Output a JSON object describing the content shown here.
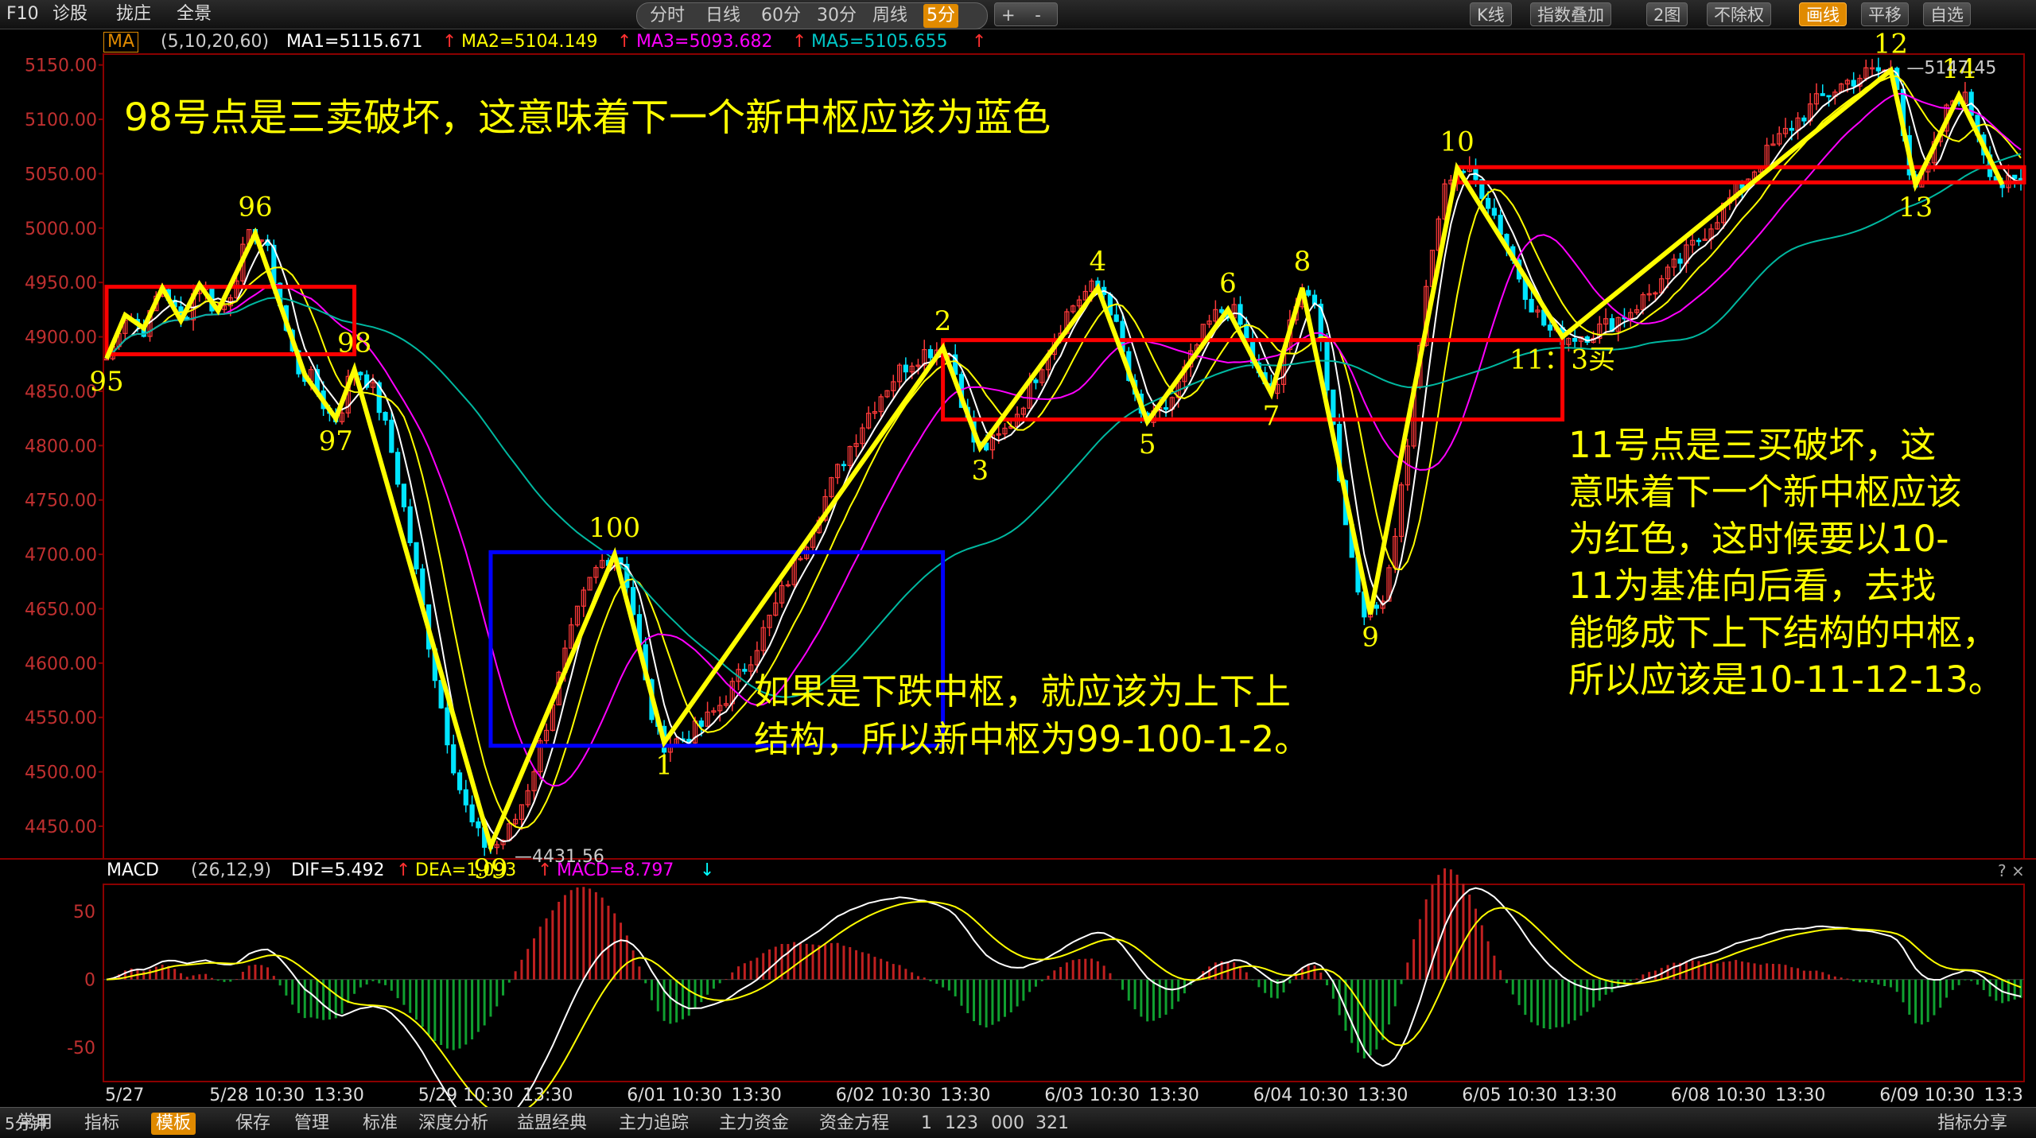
{
  "toolbar": {
    "left": [
      "F10",
      "诊股",
      "拢庄",
      "全景"
    ],
    "periods": [
      "分时",
      "日线",
      "60分",
      "30分",
      "周线",
      "5分"
    ],
    "active_period": "5分",
    "zoom": [
      "+",
      "-"
    ],
    "right": [
      "K线",
      "指数叠加",
      "2图",
      "不除权",
      "画线",
      "平移",
      "自选"
    ]
  },
  "ma_bar": {
    "name": "MA",
    "params": "(5,10,20,60)",
    "ma1": "MA1=5115.671",
    "ma2": "MA2=5104.149",
    "ma3": "MA3=5093.682",
    "ma5": "MA5=5105.655",
    "arrow": "↑"
  },
  "macd_bar": {
    "name": "MACD",
    "params": "(26,12,9)",
    "dif": "DIF=5.492",
    "dea": "DEA=1.093",
    "macd": "MACD=8.797",
    "arrow_up": "↑",
    "arrow_down": "↓",
    "close_buttons": "? ×"
  },
  "annotations": {
    "top_note": "98号点是三卖破坏，这意味着下一个新中枢应该为蓝色",
    "middle_note": [
      "如果是下跌中枢，就应该为上下上",
      "结构，所以新中枢为99-100-1-2。"
    ],
    "right_note": [
      "11号点是三买破坏，这",
      "意味着下一个新中枢应该",
      "为红色，这时候要以10-",
      "11为基准向后看，去找",
      "能够成下上下结构的中枢，",
      "所以应该是10-11-12-13。"
    ]
  },
  "bottom_bar": {
    "period_label": "5分钟",
    "tabs": [
      "常用",
      "指标",
      "模板",
      "保存",
      "管理",
      "标准",
      "深度分析",
      "益盟经典",
      "主力追踪",
      "主力资金",
      "资金方程"
    ],
    "active_tab": "模板",
    "numbers": [
      "1",
      "123",
      "000",
      "321"
    ],
    "right": "指标分享"
  },
  "colors": {
    "zigzag": "#ffff00",
    "red_box": "#ff0000",
    "blue_box": "#0000ff",
    "candle_up": "#ff3a3a",
    "candle_down": "#00e5ff",
    "ma_white": "#ffffff",
    "ma_yellow": "#ffff00",
    "ma_magenta": "#ff00ff",
    "ma_green": "#00b8a0",
    "grid": "#8b0000"
  },
  "chart_data": {
    "type": "line",
    "price_axis": {
      "ylim": [
        4420,
        5160
      ],
      "ticks": [
        "5150.00",
        "5100.00",
        "5050.00",
        "5000.00",
        "4950.00",
        "4900.00",
        "4850.00",
        "4800.00",
        "4750.00",
        "4700.00",
        "4650.00",
        "4600.00",
        "4550.00",
        "4500.00",
        "4450.00"
      ]
    },
    "time_axis": {
      "ticks": [
        "5/27",
        "5/28 10:30",
        "13:30",
        "5/29 10:30",
        "13:30",
        "6/01 10:30",
        "13:30",
        "6/02 10:30",
        "13:30",
        "6/03 10:30",
        "13:30",
        "6/04 10:30",
        "13:30",
        "6/05 10:30",
        "13:30",
        "6/08 10:30",
        "13:30",
        "6/09 10:30",
        "13:3"
      ]
    },
    "zigzag_points": [
      {
        "label": "95",
        "i": 0,
        "price": 4880
      },
      {
        "label": "",
        "i": 3,
        "price": 4920
      },
      {
        "label": "",
        "i": 6,
        "price": 4908
      },
      {
        "label": "",
        "i": 9,
        "price": 4945
      },
      {
        "label": "",
        "i": 12,
        "price": 4915
      },
      {
        "label": "",
        "i": 15,
        "price": 4948
      },
      {
        "label": "",
        "i": 18,
        "price": 4924
      },
      {
        "label": "96",
        "i": 24,
        "price": 4995
      },
      {
        "label": "",
        "i": 32,
        "price": 4865
      },
      {
        "label": "97",
        "i": 37,
        "price": 4825
      },
      {
        "label": "98",
        "i": 40,
        "price": 4870
      },
      {
        "label": "99",
        "i": 62,
        "price": 4431.56
      },
      {
        "label": "100",
        "i": 82,
        "price": 4700
      },
      {
        "label": "1",
        "i": 90,
        "price": 4527
      },
      {
        "label": "2",
        "i": 135,
        "price": 4890
      },
      {
        "label": "3",
        "i": 141,
        "price": 4798
      },
      {
        "label": "4",
        "i": 160,
        "price": 4945
      },
      {
        "label": "5",
        "i": 168,
        "price": 4822
      },
      {
        "label": "6",
        "i": 181,
        "price": 4925
      },
      {
        "label": "7",
        "i": 188,
        "price": 4848
      },
      {
        "label": "8",
        "i": 193,
        "price": 4945
      },
      {
        "label": "9",
        "i": 204,
        "price": 4645
      },
      {
        "label": "10",
        "i": 218,
        "price": 5055
      },
      {
        "label": "11",
        "i": 235,
        "price": 4900
      },
      {
        "label": "12",
        "i": 288,
        "price": 5145
      },
      {
        "label": "13",
        "i": 292,
        "price": 5040
      },
      {
        "label": "14",
        "i": 299,
        "price": 5122
      },
      {
        "label": "",
        "i": 306,
        "price": 5040
      }
    ],
    "point_label_suffix": {
      "11": "：3买"
    },
    "extreme_labels": {
      "low": "4431.56",
      "high": "5147.45"
    },
    "zones": [
      {
        "color": "red",
        "from": "95",
        "to": "98",
        "low": 4884,
        "high": 4946
      },
      {
        "color": "blue",
        "from": "99",
        "to": "2",
        "low": 4524,
        "high": 4702
      },
      {
        "color": "red",
        "from": "2",
        "to": "11",
        "low": 4824,
        "high": 4897
      },
      {
        "color": "red",
        "from": "10",
        "to": "end",
        "low": 5042,
        "high": 5056
      }
    ],
    "macd_axis": {
      "ylim": [
        -75,
        70
      ],
      "ticks": [
        "50",
        "0",
        "-50"
      ]
    }
  }
}
